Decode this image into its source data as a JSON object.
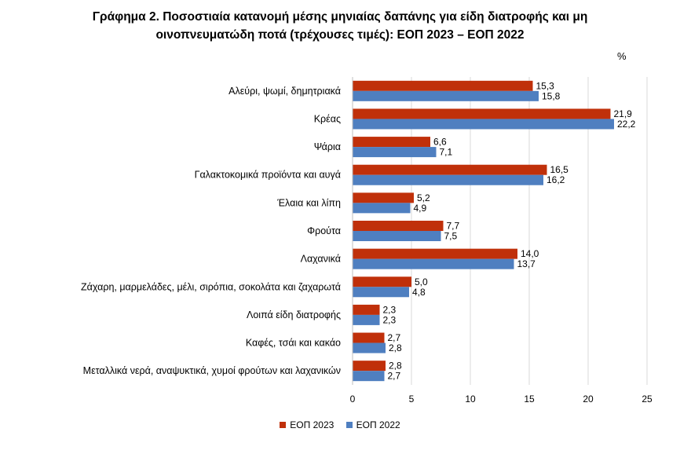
{
  "title": {
    "line1": "Γράφημα 2.  Ποσοστιαία κατανομή μέσης μηνιαίας δαπάνης για είδη διατροφής και μη",
    "line2": "οινοπνευματώδη ποτά (τρέχουσες τιμές): ΕΟΠ 2023 – ΕΟΠ 2022"
  },
  "unit": "%",
  "colors": {
    "eop2023": "#C0300A",
    "eop2022": "#4F7FC0",
    "grid": "#D9D9D9"
  },
  "chart_data": {
    "type": "bar",
    "orientation": "horizontal",
    "categories": [
      "Αλεύρι, ψωμί, δημητριακά",
      "Κρέας",
      "Ψάρια",
      "Γαλακτοκομικά προϊόντα και αυγά",
      "Έλαια και λίπη",
      "Φρούτα",
      "Λαχανικά",
      "Ζάχαρη, μαρμελάδες, μέλι, σιρόπια, σοκολάτα και ζαχαρωτά",
      "Λοιπά είδη διατροφής",
      "Καφές, τσάι και κακάο",
      "Μεταλλικά νερά, αναψυκτικά, χυμοί φρούτων και λαχανικών"
    ],
    "series": [
      {
        "name": "ΕΟΠ 2023",
        "values": [
          15.3,
          21.9,
          6.6,
          16.5,
          5.2,
          7.7,
          14.0,
          5.0,
          2.3,
          2.7,
          2.8
        ],
        "labels": [
          "15,3",
          "21,9",
          "6,6",
          "16,5",
          "5,2",
          "7,7",
          "14,0",
          "5,0",
          "2,3",
          "2,7",
          "2,8"
        ]
      },
      {
        "name": "ΕΟΠ 2022",
        "values": [
          15.8,
          22.2,
          7.1,
          16.2,
          4.9,
          7.5,
          13.7,
          4.8,
          2.3,
          2.8,
          2.7
        ],
        "labels": [
          "15,8",
          "22,2",
          "7,1",
          "16,2",
          "4,9",
          "7,5",
          "13,7",
          "4,8",
          "2,3",
          "2,8",
          "2,7"
        ]
      }
    ],
    "xlim": [
      0,
      25
    ],
    "xticks": [
      0,
      5,
      10,
      15,
      20,
      25
    ],
    "grid": true,
    "legend_position": "bottom"
  }
}
